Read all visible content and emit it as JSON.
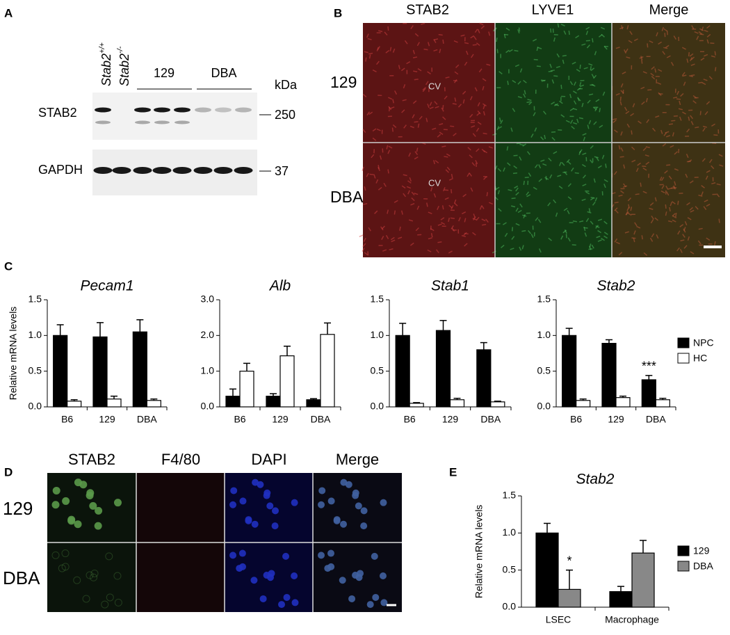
{
  "panel_labels": [
    "A",
    "B",
    "C",
    "D",
    "E"
  ],
  "blot": {
    "columns": [
      {
        "gene": "Stab2",
        "genotype": "+/+"
      },
      {
        "gene": "Stab2",
        "genotype": "-/-"
      }
    ],
    "groups": [
      "129",
      "DBA"
    ],
    "unit": "kDa",
    "rows": [
      {
        "label": "STAB2",
        "marker": 250
      },
      {
        "label": "GAPDH",
        "marker": 37
      }
    ]
  },
  "histology": {
    "columns": [
      "STAB2",
      "LYVE1",
      "Merge"
    ],
    "rows": [
      "129",
      "DBA"
    ],
    "marker": "CV"
  },
  "cells": {
    "columns": [
      "STAB2",
      "F4/80",
      "DAPI",
      "Merge"
    ],
    "rows": [
      "129",
      "DBA"
    ]
  },
  "chart_data": [
    {
      "type": "bar",
      "title": "Pecam1",
      "ylabel": "Relative mRNA levels",
      "categories": [
        "B6",
        "129",
        "DBA"
      ],
      "series": [
        {
          "color": "#000000",
          "values": [
            1.0,
            0.98,
            1.05
          ],
          "errors": [
            0.15,
            0.2,
            0.17
          ]
        },
        {
          "color": "#ffffff",
          "values": [
            0.08,
            0.11,
            0.09
          ],
          "errors": [
            0.02,
            0.04,
            0.02
          ]
        }
      ],
      "ylim": [
        0,
        1.5
      ],
      "yticks": [
        {
          "value": 0,
          "label": "0.0"
        },
        0.5,
        {
          "value": 1,
          "label": "1.0"
        },
        1.5
      ]
    },
    {
      "type": "bar",
      "title": "Alb",
      "categories": [
        "B6",
        "129",
        "DBA"
      ],
      "series": [
        {
          "color": "#000000",
          "values": [
            0.3,
            0.3,
            0.2
          ],
          "errors": [
            0.2,
            0.07,
            0.03
          ]
        },
        {
          "color": "#ffffff",
          "values": [
            1.0,
            1.43,
            2.03
          ],
          "errors": [
            0.22,
            0.27,
            0.32
          ]
        }
      ],
      "ylim": [
        0,
        3
      ],
      "yticks": [
        {
          "value": 0,
          "label": "0.0"
        },
        {
          "value": 1,
          "label": "1.0"
        },
        {
          "value": 2,
          "label": "2.0"
        },
        {
          "value": 3,
          "label": "3.0"
        }
      ]
    },
    {
      "type": "bar",
      "title": "Stab1",
      "categories": [
        "B6",
        "129",
        "DBA"
      ],
      "series": [
        {
          "color": "#000000",
          "values": [
            1.0,
            1.07,
            0.8
          ],
          "errors": [
            0.17,
            0.14,
            0.1
          ]
        },
        {
          "color": "#ffffff",
          "values": [
            0.05,
            0.1,
            0.07
          ],
          "errors": [
            0.01,
            0.02,
            0.01
          ]
        }
      ],
      "ylim": [
        0,
        1.5
      ],
      "yticks": [
        {
          "value": 0,
          "label": "0.0"
        },
        0.5,
        {
          "value": 1,
          "label": "1.0"
        },
        1.5
      ]
    },
    {
      "type": "bar",
      "title": "Stab2",
      "categories": [
        "B6",
        "129",
        "DBA"
      ],
      "annotation": "***",
      "legend": "right",
      "series": [
        {
          "name": "NPC",
          "color": "#000000",
          "values": [
            1.0,
            0.89,
            0.38
          ],
          "errors": [
            0.1,
            0.05,
            0.06
          ]
        },
        {
          "name": "HC",
          "color": "#ffffff",
          "values": [
            0.09,
            0.13,
            0.1
          ],
          "errors": [
            0.02,
            0.02,
            0.02
          ]
        }
      ],
      "ylim": [
        0,
        1.5
      ],
      "yticks": [
        {
          "value": 0,
          "label": "0.0"
        },
        0.5,
        {
          "value": 1,
          "label": "1.0"
        },
        1.5
      ]
    },
    {
      "type": "bar",
      "title": "Stab2",
      "ylabel": "Relative mRNA levels",
      "categories": [
        "LSEC",
        "Macrophage"
      ],
      "annotation": "*",
      "legend": "right",
      "series": [
        {
          "name": "129",
          "color": "#000000",
          "values": [
            1.0,
            0.21
          ],
          "errors": [
            0.13,
            0.07
          ]
        },
        {
          "name": "DBA",
          "color": "#888888",
          "values": [
            0.24,
            0.73
          ],
          "errors": [
            0.26,
            0.17
          ]
        }
      ],
      "ylim": [
        0,
        1.5
      ],
      "yticks": [
        {
          "value": 0,
          "label": "0.0"
        },
        0.5,
        {
          "value": 1,
          "label": "1.0"
        },
        1.5
      ]
    }
  ]
}
